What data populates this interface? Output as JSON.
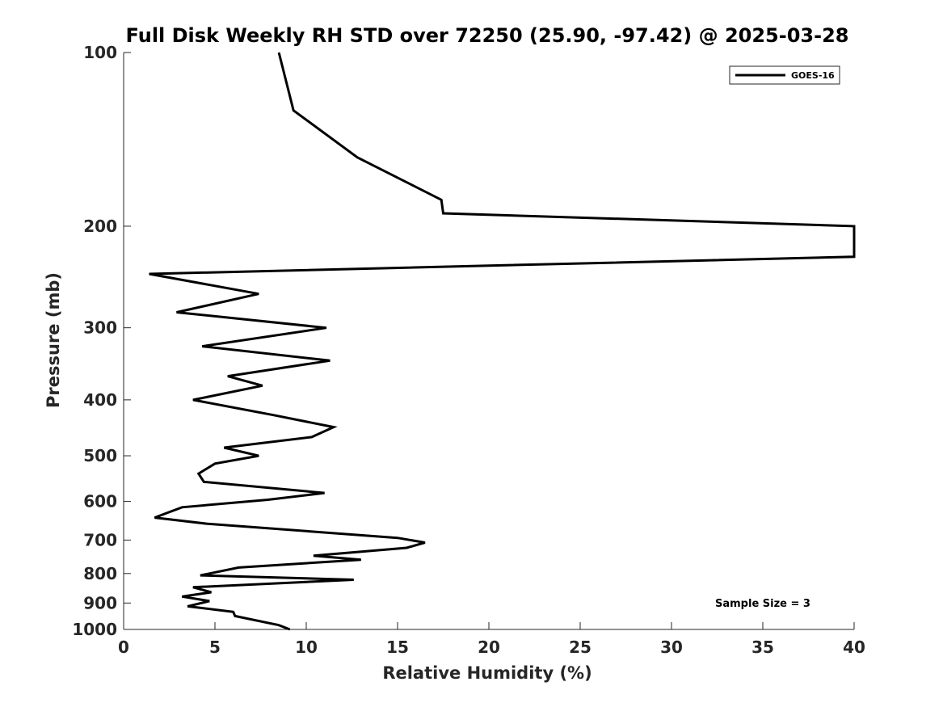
{
  "chart_data": {
    "type": "line",
    "title": "Full Disk Weekly RH STD over 72250 (25.90, -97.42) @ 2025-03-28",
    "xlabel": "Relative Humidity (%)",
    "ylabel": "Pressure (mb)",
    "xlim": [
      0,
      40
    ],
    "ylim": [
      100,
      1000
    ],
    "y_scale": "log",
    "y_reversed": true,
    "xticks": [
      0,
      5,
      10,
      15,
      20,
      25,
      30,
      35,
      40
    ],
    "yticks": [
      100,
      200,
      300,
      400,
      500,
      600,
      700,
      800,
      900,
      1000
    ],
    "grid": false,
    "legend_position": "top-right",
    "annotation": "Sample Size = 3",
    "series": [
      {
        "name": "GOES-16",
        "color": "#000000",
        "points": [
          [
            8.5,
            100
          ],
          [
            9.3,
            126
          ],
          [
            12.8,
            152
          ],
          [
            17.4,
            180
          ],
          [
            17.5,
            190
          ],
          [
            40,
            200
          ],
          [
            40,
            226
          ],
          [
            1.4,
            242
          ],
          [
            7.4,
            262
          ],
          [
            2.9,
            282
          ],
          [
            11.1,
            300
          ],
          [
            4.3,
            323
          ],
          [
            11.3,
            342
          ],
          [
            5.7,
            364
          ],
          [
            7.6,
            378
          ],
          [
            3.8,
            400
          ],
          [
            8.2,
            425
          ],
          [
            11.5,
            446
          ],
          [
            10.3,
            464
          ],
          [
            5.5,
            484
          ],
          [
            7.4,
            500
          ],
          [
            5.0,
            516
          ],
          [
            4.1,
            537
          ],
          [
            4.4,
            555
          ],
          [
            11.0,
            580
          ],
          [
            7.9,
            596
          ],
          [
            3.2,
            614
          ],
          [
            1.7,
            640
          ],
          [
            4.6,
            656
          ],
          [
            15.0,
            694
          ],
          [
            16.5,
            707
          ],
          [
            15.5,
            722
          ],
          [
            10.4,
            745
          ],
          [
            13.0,
            757
          ],
          [
            6.3,
            781
          ],
          [
            4.2,
            806
          ],
          [
            12.6,
            820
          ],
          [
            3.8,
            845
          ],
          [
            4.8,
            862
          ],
          [
            3.2,
            877
          ],
          [
            4.7,
            893
          ],
          [
            3.5,
            912
          ],
          [
            6.0,
            932
          ],
          [
            6.1,
            948
          ],
          [
            8.5,
            983
          ],
          [
            9.1,
            1000
          ]
        ]
      }
    ]
  }
}
